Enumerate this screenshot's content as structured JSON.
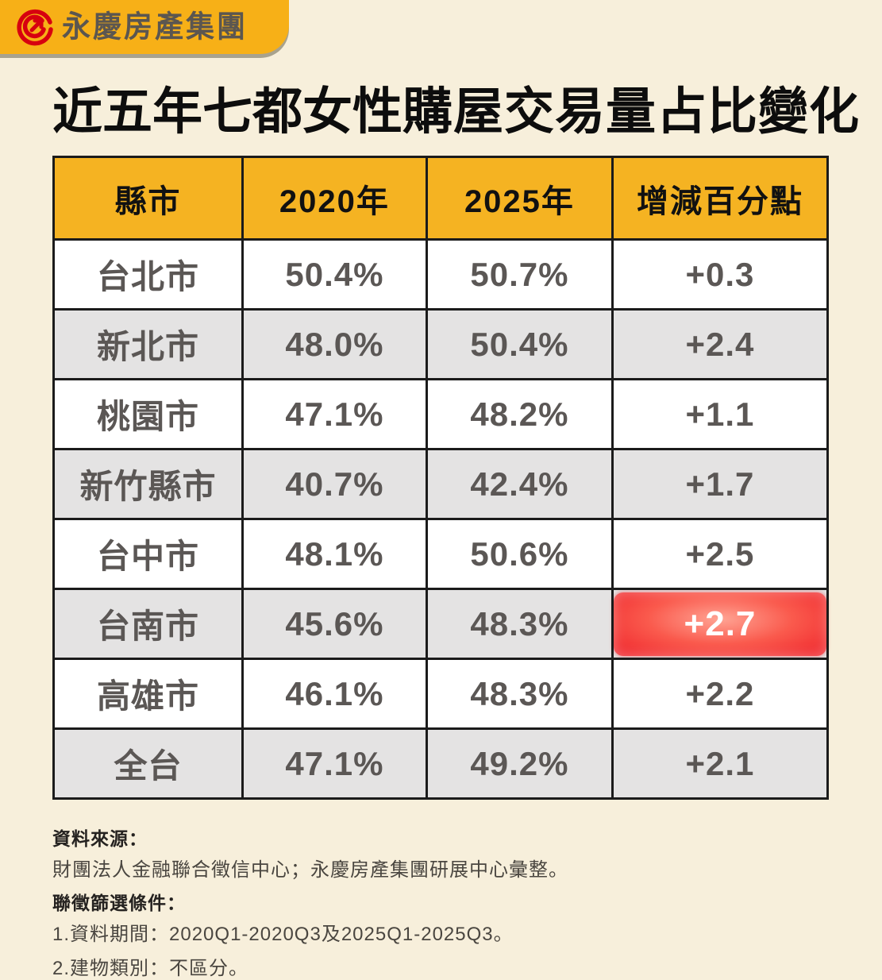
{
  "logo": {
    "brand": "永慶房產集團",
    "icon": "yungching-spiral-arrow-icon",
    "banner_color": "#f7b017",
    "icon_color": "#d7000f"
  },
  "title": {
    "normal_part": "近五年七都女性",
    "heavy_part": "購屋交易量占比變化"
  },
  "table": {
    "columns": [
      "縣市",
      "2020年",
      "2025年",
      "增減百分點"
    ],
    "rows": [
      {
        "city": "台北市",
        "y2020": "50.4%",
        "y2025": "50.7%",
        "change": "+0.3",
        "highlight": false
      },
      {
        "city": "新北市",
        "y2020": "48.0%",
        "y2025": "50.4%",
        "change": "+2.4",
        "highlight": false
      },
      {
        "city": "桃園市",
        "y2020": "47.1%",
        "y2025": "48.2%",
        "change": "+1.1",
        "highlight": false
      },
      {
        "city": "新竹縣市",
        "y2020": "40.7%",
        "y2025": "42.4%",
        "change": "+1.7",
        "highlight": false
      },
      {
        "city": "台中市",
        "y2020": "48.1%",
        "y2025": "50.6%",
        "change": "+2.5",
        "highlight": false
      },
      {
        "city": "台南市",
        "y2020": "45.6%",
        "y2025": "48.3%",
        "change": "+2.7",
        "highlight": true
      },
      {
        "city": "高雄市",
        "y2020": "46.1%",
        "y2025": "48.3%",
        "change": "+2.2",
        "highlight": false
      },
      {
        "city": "全台",
        "y2020": "47.1%",
        "y2025": "49.2%",
        "change": "+2.1",
        "highlight": false
      }
    ]
  },
  "chart_data": {
    "type": "table",
    "title": "近五年七都女性購屋交易量占比變化",
    "columns": [
      "縣市",
      "2020年",
      "2025年",
      "增減百分點"
    ],
    "rows": [
      [
        "台北市",
        "50.4%",
        "50.7%",
        "+0.3"
      ],
      [
        "新北市",
        "48.0%",
        "50.4%",
        "+2.4"
      ],
      [
        "桃園市",
        "47.1%",
        "48.2%",
        "+1.1"
      ],
      [
        "新竹縣市",
        "40.7%",
        "42.4%",
        "+1.7"
      ],
      [
        "台中市",
        "48.1%",
        "50.6%",
        "+2.5"
      ],
      [
        "台南市",
        "45.6%",
        "48.3%",
        "+2.7"
      ],
      [
        "高雄市",
        "46.1%",
        "48.3%",
        "+2.2"
      ],
      [
        "全台",
        "47.1%",
        "49.2%",
        "+2.1"
      ]
    ],
    "highlighted_cell": {
      "row": "台南市",
      "column": "增減百分點",
      "value": "+2.7",
      "style": "red-glow-badge"
    },
    "header_bg": "#f5b322",
    "alt_row_bg": "#e4e3e3",
    "highlight_color": "#ee2129"
  },
  "footer": {
    "source_label": "資料來源：",
    "source_text": "財團法人金融聯合徵信中心；永慶房產集團研展中心彙整。",
    "criteria_label": "聯徵篩選條件：",
    "criteria_items": [
      "1.資料期間：2020Q1-2020Q3及2025Q1-2025Q3。",
      "2.建物類別：不區分。"
    ]
  },
  "colors": {
    "page_bg": "#f7efdb",
    "banner_yellow": "#f7b017",
    "header_yellow": "#f5b322",
    "row_alt_gray": "#e4e3e3",
    "cell_text": "#5b5755",
    "highlight_red": "#ee2129",
    "border_black": "#1b1b1b"
  }
}
